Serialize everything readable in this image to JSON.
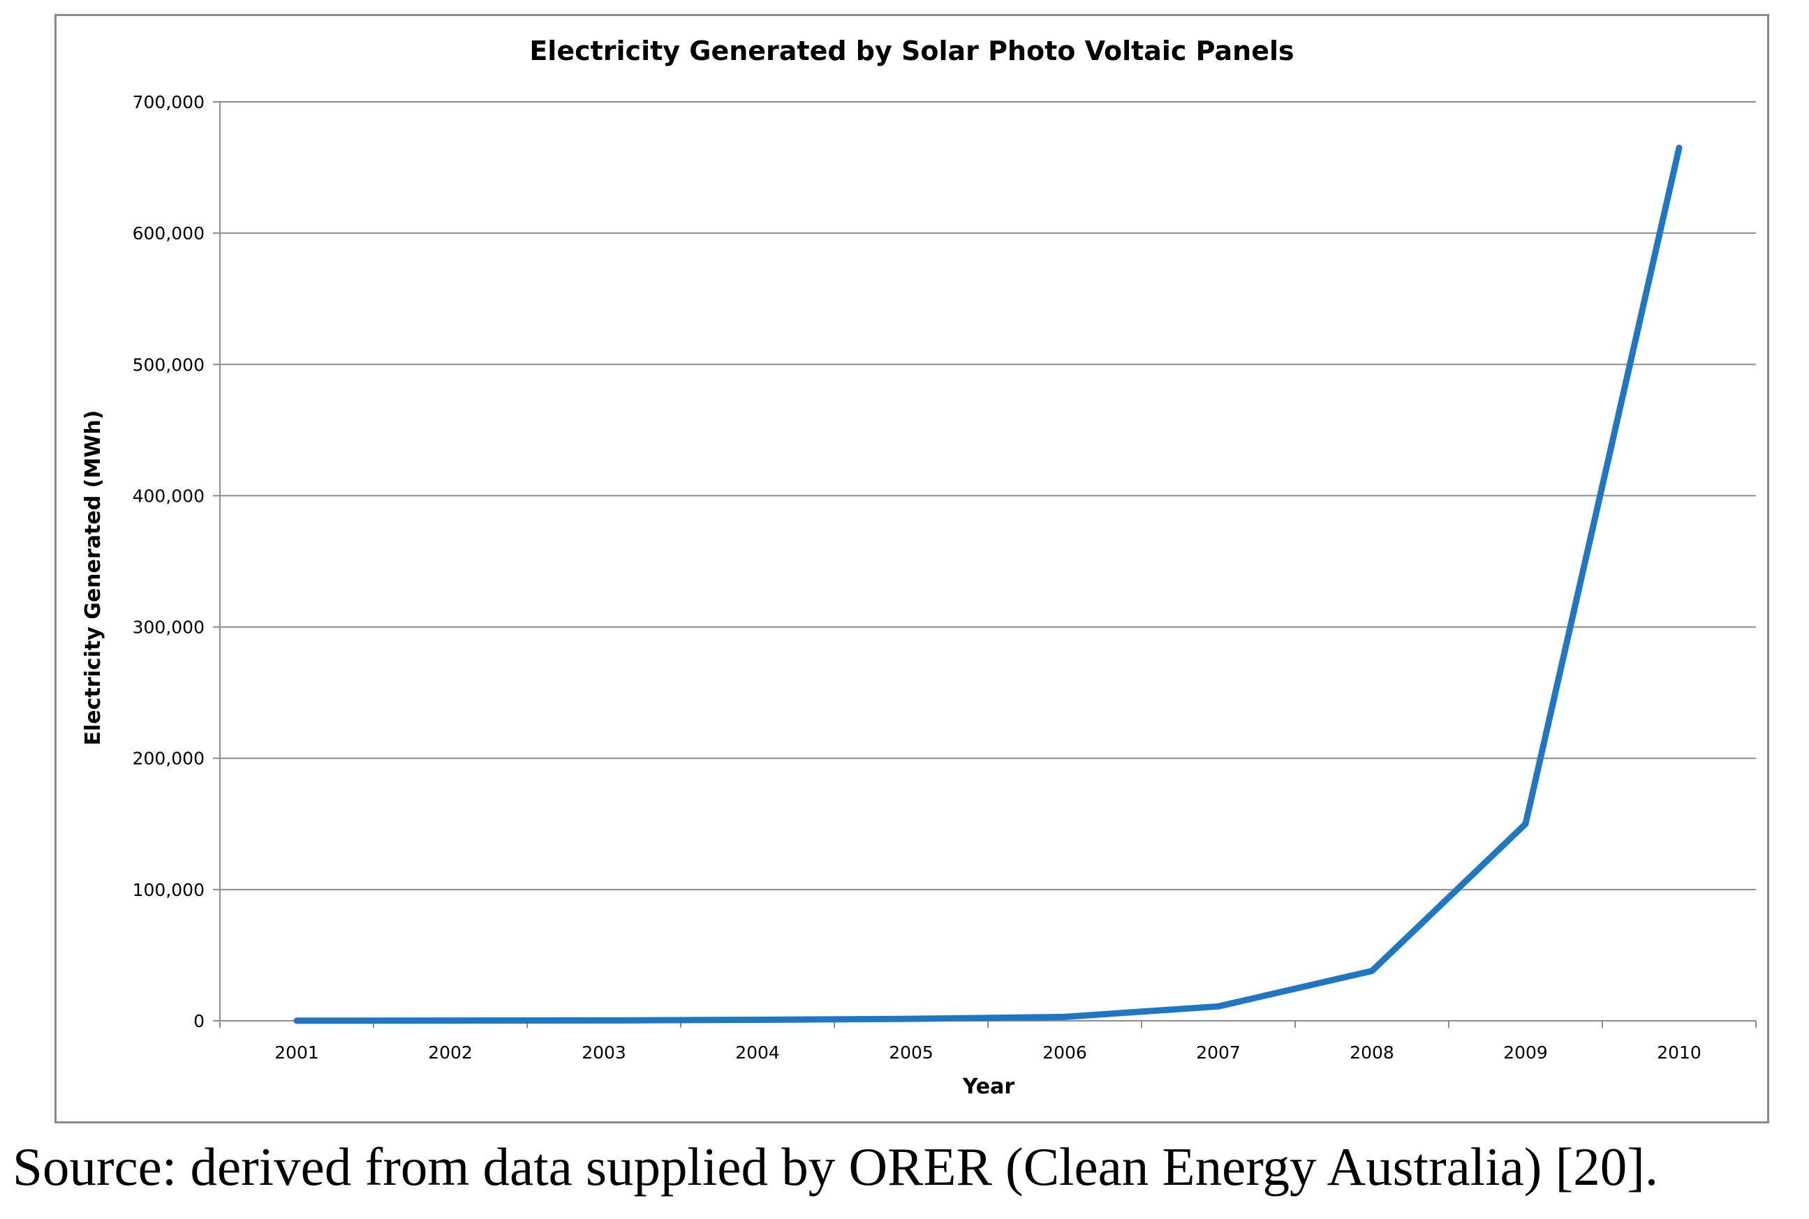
{
  "chart_data": {
    "type": "line",
    "title": "Electricity Generated by Solar Photo Voltaic Panels",
    "xlabel": "Year",
    "ylabel": "Electricity Generated (MWh)",
    "ylim": [
      0,
      700000
    ],
    "yticks": [
      0,
      100000,
      200000,
      300000,
      400000,
      500000,
      600000,
      700000
    ],
    "ytick_labels": [
      "0",
      "100,000",
      "200,000",
      "300,000",
      "400,000",
      "500,000",
      "600,000",
      "700,000"
    ],
    "categories": [
      "2001",
      "2002",
      "2003",
      "2004",
      "2005",
      "2006",
      "2007",
      "2008",
      "2009",
      "2010"
    ],
    "grid": true,
    "legend": "none",
    "series": [
      {
        "name": "Electricity Generated (MWh)",
        "color": "#1f77c4",
        "values": [
          100,
          200,
          300,
          800,
          1500,
          3000,
          11000,
          38000,
          150000,
          665000
        ]
      }
    ]
  },
  "caption": "Source: derived from data supplied by ORER (Clean Energy Australia) [20]."
}
